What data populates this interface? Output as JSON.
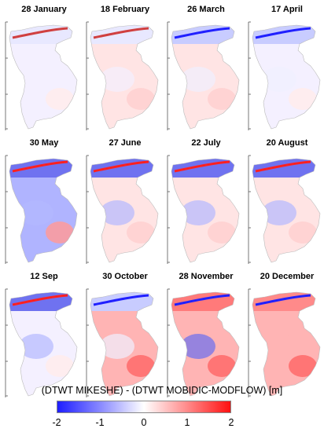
{
  "panels": [
    {
      "title": "28 January",
      "north": "light",
      "south": "light"
    },
    {
      "title": "18 February",
      "north": "light",
      "south": "light-red"
    },
    {
      "title": "26 March",
      "north": "mixed",
      "south": "light-red"
    },
    {
      "title": "17 April",
      "north": "mixed",
      "south": "light"
    },
    {
      "title": "30 May",
      "north": "blue",
      "south": "blue-red"
    },
    {
      "title": "27 June",
      "north": "blue",
      "south": "light-red"
    },
    {
      "title": "22 July",
      "north": "blue",
      "south": "light-red"
    },
    {
      "title": "20 August",
      "north": "blue",
      "south": "light-red"
    },
    {
      "title": "12 Sep",
      "north": "blue",
      "south": "light"
    },
    {
      "title": "30 October",
      "north": "mixed",
      "south": "red"
    },
    {
      "title": "28 November",
      "north": "red-blue",
      "south": "red"
    },
    {
      "title": "20 December",
      "north": "red",
      "south": "red"
    }
  ],
  "colorbar": {
    "label": "(DTWT MIKESHE) - (DTWT MOBIDIC-MODFLOW) [m]",
    "ticks": [
      "-2",
      "-1",
      "0",
      "1",
      "2"
    ],
    "min": -2,
    "max": 2,
    "colors": {
      "low": "#1e1eff",
      "mid": "#ffffff",
      "high": "#ff1010"
    }
  }
}
